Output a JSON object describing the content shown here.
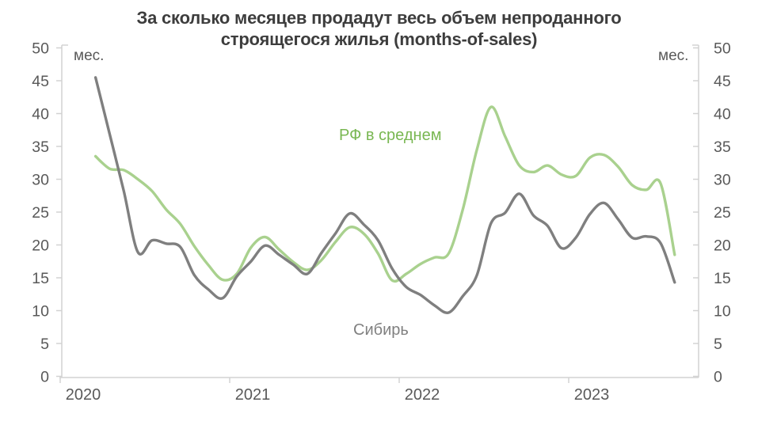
{
  "chart_data": {
    "type": "line",
    "title": "За сколько месяцев продадут весь объем непроданного строящегося жилья (months-of-sales)",
    "title_lines": {
      "line1": "За сколько месяцев продадут весь объем непроданного",
      "line2": "строящегося жилья (months-of-sales)"
    },
    "y_axis": {
      "label_left": "мес.",
      "label_right": "мес.",
      "min": 0,
      "max": 50,
      "step": 5,
      "tick_labels": [
        "0",
        "5",
        "10",
        "15",
        "20",
        "25",
        "30",
        "35",
        "40",
        "45",
        "50"
      ],
      "tick_color": "#595959",
      "axis_color": "#d2d2d2"
    },
    "x_axis": {
      "tick_labels": [
        "2020",
        "2021",
        "2022",
        "2023"
      ],
      "tick_color": "#595959",
      "axis_color": "#d2d2d2"
    },
    "grid": false,
    "legend_position": "inline-labels",
    "months": [
      "2020-03",
      "2020-04",
      "2020-05",
      "2020-06",
      "2020-07",
      "2020-08",
      "2020-09",
      "2020-10",
      "2020-11",
      "2020-12",
      "2021-01",
      "2021-02",
      "2021-03",
      "2021-04",
      "2021-05",
      "2021-06",
      "2021-07",
      "2021-08",
      "2021-09",
      "2021-10",
      "2021-11",
      "2021-12",
      "2022-01",
      "2022-02",
      "2022-03",
      "2022-04",
      "2022-05",
      "2022-06",
      "2022-07",
      "2022-08",
      "2022-09",
      "2022-10",
      "2022-11",
      "2022-12",
      "2023-01",
      "2023-02",
      "2023-03",
      "2023-04",
      "2023-05",
      "2023-06",
      "2023-07",
      "2023-08"
    ],
    "series": [
      {
        "name": "РФ в среднем",
        "color": "#a9d18e",
        "label_color": "#79b752",
        "smooth": true,
        "values": [
          33.5,
          31.6,
          31.4,
          30.0,
          28.2,
          25.4,
          23.2,
          19.8,
          16.9,
          14.7,
          15.6,
          19.6,
          21.2,
          19.3,
          17.4,
          16.2,
          17.7,
          20.5,
          22.7,
          21.7,
          18.7,
          14.6,
          15.6,
          17.1,
          18.1,
          18.7,
          25.4,
          34.5,
          41.0,
          36.5,
          32.1,
          31.1,
          32.1,
          30.7,
          30.5,
          33.3,
          33.7,
          31.9,
          29.1,
          28.4,
          29.4,
          18.5
        ]
      },
      {
        "name": "Сибирь",
        "color": "#7f7f7f",
        "label_color": "#808080",
        "smooth": true,
        "values": [
          45.5,
          36.9,
          28.2,
          18.9,
          20.7,
          20.2,
          19.7,
          15.4,
          13.2,
          11.9,
          15.2,
          17.5,
          19.9,
          18.5,
          17.0,
          15.6,
          18.8,
          21.8,
          24.8,
          23.1,
          20.7,
          16.4,
          13.6,
          12.4,
          10.8,
          9.7,
          12.2,
          15.4,
          23.3,
          24.9,
          27.8,
          24.5,
          22.9,
          19.5,
          21.1,
          24.7,
          26.4,
          23.9,
          21.1,
          21.3,
          20.3,
          14.3
        ]
      }
    ]
  }
}
